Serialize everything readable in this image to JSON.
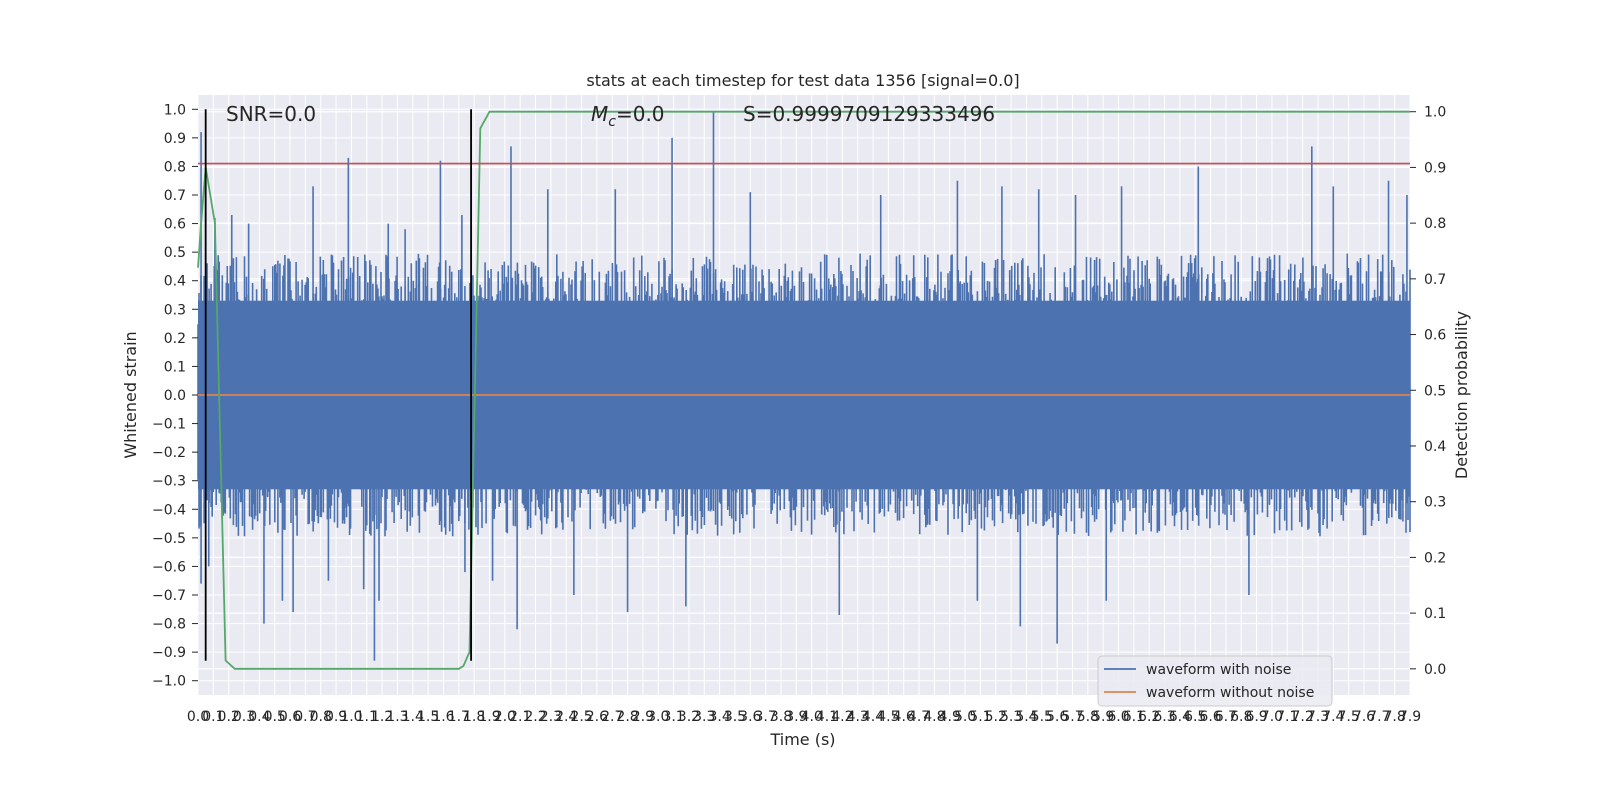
{
  "chart_data": {
    "type": "line",
    "title": "stats at each timestep for test data 1356 [signal=0.0]",
    "xlabel": "Time (s)",
    "ylabel": "Whitened strain",
    "y2label": "Detection probability",
    "xlim": [
      0.0,
      7.9
    ],
    "ylim": [
      -1.05,
      1.05
    ],
    "y2lim": [
      -0.047,
      1.03
    ],
    "grid": true,
    "legend_position": "bottom-right",
    "x_ticks": [
      "0.0",
      "0.1",
      "0.2",
      "0.3",
      "0.4",
      "0.5",
      "0.6",
      "0.7",
      "0.8",
      "0.9",
      "1.0",
      "1.1",
      "1.2",
      "1.3",
      "1.4",
      "1.5",
      "1.6",
      "1.7",
      "1.8",
      "1.9",
      "2.0",
      "2.1",
      "2.2",
      "2.3",
      "2.4",
      "2.5",
      "2.6",
      "2.7",
      "2.8",
      "2.9",
      "3.0",
      "3.1",
      "3.2",
      "3.3",
      "3.4",
      "3.5",
      "3.6",
      "3.7",
      "3.8",
      "3.9",
      "4.0",
      "4.1",
      "4.2",
      "4.3",
      "4.4",
      "4.5",
      "4.6",
      "4.7",
      "4.8",
      "4.9",
      "5.0",
      "5.1",
      "5.2",
      "5.3",
      "5.4",
      "5.5",
      "5.6",
      "5.7",
      "5.8",
      "5.9",
      "6.0",
      "6.1",
      "6.2",
      "6.3",
      "6.4",
      "6.5",
      "6.6",
      "6.7",
      "6.8",
      "6.9",
      "7.0",
      "7.1",
      "7.2",
      "7.3",
      "7.4",
      "7.5",
      "7.6",
      "7.7",
      "7.8",
      "7.9"
    ],
    "y_ticks": [
      "1.0",
      "0.9",
      "0.8",
      "0.7",
      "0.6",
      "0.5",
      "0.4",
      "0.3",
      "0.2",
      "0.1",
      "0.0",
      "−0.1",
      "−0.2",
      "−0.3",
      "−0.4",
      "−0.5",
      "−0.6",
      "−0.7",
      "−0.8",
      "−0.9",
      "−1.0"
    ],
    "y2_ticks": [
      "1.0",
      "0.9",
      "0.8",
      "0.7",
      "0.6",
      "0.5",
      "0.4",
      "0.3",
      "0.2",
      "0.1",
      "0.0"
    ],
    "annotations": {
      "snr": "SNR=0.0",
      "mc_symbol": "M",
      "mc_sub": "c",
      "mc_value": "=0.0",
      "s": "S=0.9999709129333496"
    },
    "series": [
      {
        "name": "waveform with noise",
        "color": "#4c72b0",
        "description_points": {
          "core_amplitude": 0.45,
          "spikes": [
            {
              "x": 0.02,
              "y": 0.92
            },
            {
              "x": 0.02,
              "y": -0.66
            },
            {
              "x": 0.05,
              "y": 0.78
            },
            {
              "x": 0.07,
              "y": -0.6
            },
            {
              "x": 0.11,
              "y": 0.62
            },
            {
              "x": 0.22,
              "y": 0.63
            },
            {
              "x": 0.33,
              "y": 0.6
            },
            {
              "x": 0.43,
              "y": -0.8
            },
            {
              "x": 0.55,
              "y": -0.72
            },
            {
              "x": 0.62,
              "y": -0.76
            },
            {
              "x": 0.75,
              "y": 0.73
            },
            {
              "x": 0.85,
              "y": -0.65
            },
            {
              "x": 0.98,
              "y": 0.83
            },
            {
              "x": 1.08,
              "y": -0.68
            },
            {
              "x": 1.15,
              "y": -0.93
            },
            {
              "x": 1.18,
              "y": -0.72
            },
            {
              "x": 1.24,
              "y": 0.6
            },
            {
              "x": 1.35,
              "y": 0.58
            },
            {
              "x": 1.58,
              "y": 0.82
            },
            {
              "x": 1.72,
              "y": 0.63
            },
            {
              "x": 1.74,
              "y": -0.62
            },
            {
              "x": 1.92,
              "y": -0.65
            },
            {
              "x": 2.04,
              "y": 0.87
            },
            {
              "x": 2.08,
              "y": -0.82
            },
            {
              "x": 2.28,
              "y": 0.72
            },
            {
              "x": 2.45,
              "y": -0.7
            },
            {
              "x": 2.72,
              "y": 0.72
            },
            {
              "x": 2.8,
              "y": -0.76
            },
            {
              "x": 3.09,
              "y": 0.9
            },
            {
              "x": 3.18,
              "y": -0.74
            },
            {
              "x": 3.36,
              "y": 0.99
            },
            {
              "x": 3.6,
              "y": 0.71
            },
            {
              "x": 4.18,
              "y": -0.77
            },
            {
              "x": 4.45,
              "y": 0.7
            },
            {
              "x": 4.95,
              "y": 0.75
            },
            {
              "x": 5.08,
              "y": -0.72
            },
            {
              "x": 5.24,
              "y": 0.73
            },
            {
              "x": 5.36,
              "y": -0.81
            },
            {
              "x": 5.48,
              "y": 0.72
            },
            {
              "x": 5.6,
              "y": -0.87
            },
            {
              "x": 5.72,
              "y": 0.7
            },
            {
              "x": 5.92,
              "y": -0.72
            },
            {
              "x": 6.02,
              "y": 0.73
            },
            {
              "x": 6.52,
              "y": 0.8
            },
            {
              "x": 6.85,
              "y": -0.7
            },
            {
              "x": 7.26,
              "y": 0.87
            },
            {
              "x": 7.4,
              "y": 0.73
            },
            {
              "x": 7.76,
              "y": 0.75
            },
            {
              "x": 7.88,
              "y": 0.7
            }
          ]
        }
      },
      {
        "name": "waveform without noise",
        "color": "#dd8452",
        "x": [
          0.0,
          7.9
        ],
        "y": [
          0.0,
          0.0
        ]
      },
      {
        "name": "",
        "axis": "right",
        "color": "#55a868",
        "x": [
          0.0,
          0.02,
          0.05,
          0.11,
          0.18,
          0.24,
          1.7,
          1.73,
          1.77,
          1.84,
          1.9,
          7.9
        ],
        "y": [
          0.72,
          0.8,
          0.9,
          0.8,
          0.015,
          0.0,
          0.0,
          0.005,
          0.03,
          0.97,
          1.0,
          1.0
        ]
      }
    ],
    "hlines": [
      {
        "y": 0.81,
        "color": "#c44e52"
      }
    ],
    "vlines": [
      {
        "x": 0.05,
        "y_from": -0.93,
        "y_to": 1.0,
        "color": "#000000"
      },
      {
        "x": 1.78,
        "y_from": -0.93,
        "y_to": 1.0,
        "color": "#000000"
      }
    ]
  }
}
